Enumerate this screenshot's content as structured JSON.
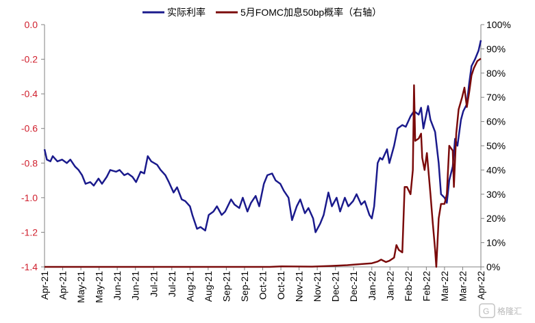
{
  "chart_data": {
    "type": "line",
    "legend": {
      "placement": "top-center"
    },
    "grid": false,
    "x_tick_labels": [
      "Apr-21",
      "Apr-21",
      "May-21",
      "May-21",
      "Jun-21",
      "Jun-21",
      "Jul-21",
      "Jul-21",
      "Aug-21",
      "Aug-21",
      "Sep-21",
      "Sep-21",
      "Oct-21",
      "Oct-21",
      "Nov-21",
      "Nov-21",
      "Dec-21",
      "Dec-21",
      "Jan-22",
      "Jan-22",
      "Feb-22",
      "Feb-22",
      "Mar-22",
      "Mar-22",
      "Apr-22"
    ],
    "x_range": [
      "2021-04-01",
      "2022-04-08"
    ],
    "y_left": {
      "ylim": [
        -1.4,
        0.0
      ],
      "ticks": [
        "0.0",
        "-0.2",
        "-0.4",
        "-0.6",
        "-0.8",
        "-1.0",
        "-1.2",
        "-1.4"
      ],
      "tick_color": "#d0202e"
    },
    "y_right": {
      "ylim": [
        0,
        100
      ],
      "ticks": [
        "100%",
        "90%",
        "80%",
        "70%",
        "60%",
        "50%",
        "40%",
        "30%",
        "20%",
        "10%",
        "0%"
      ],
      "tick_color": "#000000"
    },
    "series": [
      {
        "name": "实际利率",
        "axis": "left",
        "color": "#1a1a8c",
        "points": [
          [
            "2021-04-01",
            -0.72
          ],
          [
            "2021-04-03",
            -0.78
          ],
          [
            "2021-04-06",
            -0.79
          ],
          [
            "2021-04-08",
            -0.76
          ],
          [
            "2021-04-12",
            -0.79
          ],
          [
            "2021-04-16",
            -0.78
          ],
          [
            "2021-04-20",
            -0.8
          ],
          [
            "2021-04-23",
            -0.78
          ],
          [
            "2021-04-27",
            -0.82
          ],
          [
            "2021-04-30",
            -0.84
          ],
          [
            "2021-05-03",
            -0.87
          ],
          [
            "2021-05-06",
            -0.92
          ],
          [
            "2021-05-10",
            -0.91
          ],
          [
            "2021-05-13",
            -0.93
          ],
          [
            "2021-05-17",
            -0.89
          ],
          [
            "2021-05-20",
            -0.92
          ],
          [
            "2021-05-24",
            -0.88
          ],
          [
            "2021-05-27",
            -0.84
          ],
          [
            "2021-06-01",
            -0.85
          ],
          [
            "2021-06-04",
            -0.84
          ],
          [
            "2021-06-08",
            -0.87
          ],
          [
            "2021-06-11",
            -0.86
          ],
          [
            "2021-06-15",
            -0.88
          ],
          [
            "2021-06-18",
            -0.91
          ],
          [
            "2021-06-22",
            -0.85
          ],
          [
            "2021-06-25",
            -0.86
          ],
          [
            "2021-06-28",
            -0.76
          ],
          [
            "2021-07-01",
            -0.79
          ],
          [
            "2021-07-06",
            -0.81
          ],
          [
            "2021-07-09",
            -0.84
          ],
          [
            "2021-07-13",
            -0.87
          ],
          [
            "2021-07-16",
            -0.91
          ],
          [
            "2021-07-20",
            -0.97
          ],
          [
            "2021-07-23",
            -0.94
          ],
          [
            "2021-07-27",
            -1.01
          ],
          [
            "2021-07-30",
            -1.02
          ],
          [
            "2021-08-03",
            -1.05
          ],
          [
            "2021-08-05",
            -1.1
          ],
          [
            "2021-08-09",
            -1.18
          ],
          [
            "2021-08-12",
            -1.17
          ],
          [
            "2021-08-16",
            -1.19
          ],
          [
            "2021-08-19",
            -1.1
          ],
          [
            "2021-08-23",
            -1.08
          ],
          [
            "2021-08-26",
            -1.05
          ],
          [
            "2021-08-30",
            -1.1
          ],
          [
            "2021-09-02",
            -1.08
          ],
          [
            "2021-09-07",
            -1.01
          ],
          [
            "2021-09-10",
            -1.04
          ],
          [
            "2021-09-14",
            -1.06
          ],
          [
            "2021-09-17",
            -1.0
          ],
          [
            "2021-09-21",
            -1.08
          ],
          [
            "2021-09-24",
            -1.03
          ],
          [
            "2021-09-28",
            -0.99
          ],
          [
            "2021-10-01",
            -1.05
          ],
          [
            "2021-10-05",
            -0.92
          ],
          [
            "2021-10-08",
            -0.87
          ],
          [
            "2021-10-12",
            -0.86
          ],
          [
            "2021-10-15",
            -0.9
          ],
          [
            "2021-10-19",
            -0.92
          ],
          [
            "2021-10-22",
            -0.96
          ],
          [
            "2021-10-26",
            -1.0
          ],
          [
            "2021-10-29",
            -1.13
          ],
          [
            "2021-11-02",
            -1.05
          ],
          [
            "2021-11-05",
            -1.01
          ],
          [
            "2021-11-09",
            -1.09
          ],
          [
            "2021-11-12",
            -1.06
          ],
          [
            "2021-11-16",
            -1.12
          ],
          [
            "2021-11-18",
            -1.2
          ],
          [
            "2021-11-22",
            -1.15
          ],
          [
            "2021-11-25",
            -1.1
          ],
          [
            "2021-11-29",
            -0.97
          ],
          [
            "2021-12-02",
            -1.05
          ],
          [
            "2021-12-06",
            -1.0
          ],
          [
            "2021-12-09",
            -1.08
          ],
          [
            "2021-12-13",
            -1.0
          ],
          [
            "2021-12-16",
            -1.05
          ],
          [
            "2021-12-20",
            -1.02
          ],
          [
            "2021-12-23",
            -0.98
          ],
          [
            "2021-12-27",
            -1.04
          ],
          [
            "2021-12-30",
            -1.02
          ],
          [
            "2022-01-03",
            -1.1
          ],
          [
            "2022-01-05",
            -1.12
          ],
          [
            "2022-01-07",
            -1.05
          ],
          [
            "2022-01-10",
            -0.8
          ],
          [
            "2022-01-12",
            -0.77
          ],
          [
            "2022-01-14",
            -0.78
          ],
          [
            "2022-01-18",
            -0.72
          ],
          [
            "2022-01-20",
            -0.8
          ],
          [
            "2022-01-24",
            -0.7
          ],
          [
            "2022-01-27",
            -0.6
          ],
          [
            "2022-01-31",
            -0.58
          ],
          [
            "2022-02-03",
            -0.59
          ],
          [
            "2022-02-07",
            -0.53
          ],
          [
            "2022-02-10",
            -0.5
          ],
          [
            "2022-02-14",
            -0.52
          ],
          [
            "2022-02-16",
            -0.48
          ],
          [
            "2022-02-18",
            -0.6
          ],
          [
            "2022-02-22",
            -0.47
          ],
          [
            "2022-02-24",
            -0.55
          ],
          [
            "2022-02-28",
            -0.62
          ],
          [
            "2022-03-01",
            -0.68
          ],
          [
            "2022-03-03",
            -0.8
          ],
          [
            "2022-03-05",
            -0.98
          ],
          [
            "2022-03-08",
            -1.0
          ],
          [
            "2022-03-10",
            -1.03
          ],
          [
            "2022-03-12",
            -0.9
          ],
          [
            "2022-03-15",
            -0.82
          ],
          [
            "2022-03-17",
            -0.66
          ],
          [
            "2022-03-19",
            -0.7
          ],
          [
            "2022-03-22",
            -0.55
          ],
          [
            "2022-03-24",
            -0.5
          ],
          [
            "2022-03-27",
            -0.46
          ],
          [
            "2022-03-29",
            -0.34
          ],
          [
            "2022-03-31",
            -0.24
          ],
          [
            "2022-04-03",
            -0.2
          ],
          [
            "2022-04-06",
            -0.15
          ],
          [
            "2022-04-08",
            -0.09
          ]
        ]
      },
      {
        "name": "5月FOMC加息50bp概率（右轴）",
        "axis": "right",
        "color": "#7a0a0a",
        "points": [
          [
            "2021-04-01",
            0
          ],
          [
            "2021-10-10",
            0
          ],
          [
            "2021-10-20",
            0.2
          ],
          [
            "2021-11-15",
            0.1
          ],
          [
            "2021-12-01",
            0.4
          ],
          [
            "2021-12-15",
            0.7
          ],
          [
            "2021-12-28",
            1.2
          ],
          [
            "2022-01-05",
            1.5
          ],
          [
            "2022-01-10",
            2.2
          ],
          [
            "2022-01-13",
            3.0
          ],
          [
            "2022-01-17",
            2.0
          ],
          [
            "2022-01-20",
            2.5
          ],
          [
            "2022-01-24",
            3.8
          ],
          [
            "2022-01-26",
            9.0
          ],
          [
            "2022-01-28",
            7.0
          ],
          [
            "2022-01-31",
            6.0
          ],
          [
            "2022-02-02",
            33.0
          ],
          [
            "2022-02-04",
            33.0
          ],
          [
            "2022-02-07",
            30.0
          ],
          [
            "2022-02-09",
            40.0
          ],
          [
            "2022-02-10",
            75.0
          ],
          [
            "2022-02-11",
            52.0
          ],
          [
            "2022-02-14",
            53.0
          ],
          [
            "2022-02-16",
            55.0
          ],
          [
            "2022-02-17",
            45.0
          ],
          [
            "2022-02-19",
            40.0
          ],
          [
            "2022-02-21",
            47.0
          ],
          [
            "2022-02-24",
            30.0
          ],
          [
            "2022-02-26",
            18.0
          ],
          [
            "2022-02-28",
            7.0
          ],
          [
            "2022-03-01",
            0
          ],
          [
            "2022-03-03",
            20.0
          ],
          [
            "2022-03-05",
            26.0
          ],
          [
            "2022-03-08",
            26.0
          ],
          [
            "2022-03-10",
            30.0
          ],
          [
            "2022-03-12",
            50.0
          ],
          [
            "2022-03-15",
            48.0
          ],
          [
            "2022-03-16",
            33.0
          ],
          [
            "2022-03-18",
            55.0
          ],
          [
            "2022-03-20",
            65.0
          ],
          [
            "2022-03-23",
            70.0
          ],
          [
            "2022-03-25",
            74.0
          ],
          [
            "2022-03-27",
            66.0
          ],
          [
            "2022-03-29",
            72.0
          ],
          [
            "2022-03-31",
            79.0
          ],
          [
            "2022-04-02",
            82.0
          ],
          [
            "2022-04-05",
            85.0
          ],
          [
            "2022-04-08",
            86.0
          ]
        ]
      }
    ]
  },
  "watermark": {
    "text": "格隆汇"
  }
}
